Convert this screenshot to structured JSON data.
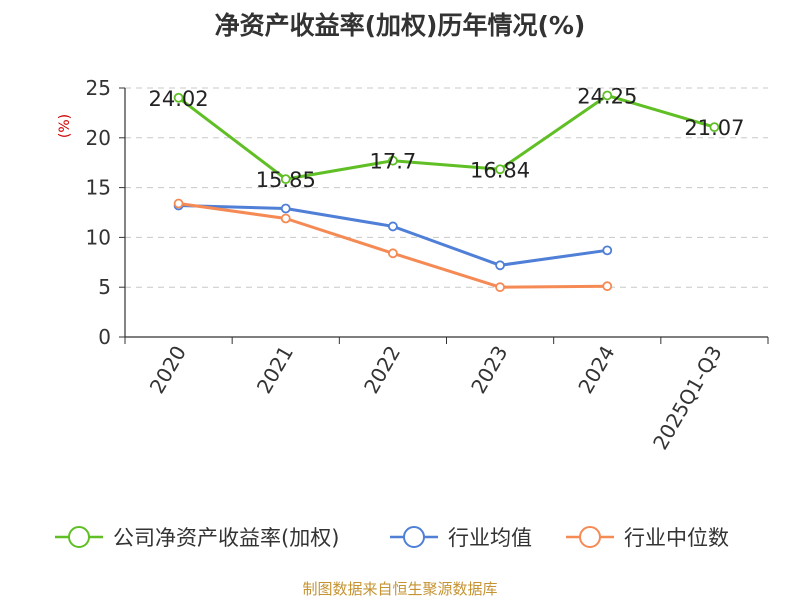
{
  "chart_data": {
    "type": "line",
    "title": "净资产收益率(加权)历年情况(%)",
    "ylabel": "(%)",
    "xlabel": "",
    "categories": [
      "2020",
      "2021",
      "2022",
      "2023",
      "2024",
      "2025Q1-Q3"
    ],
    "ylim": [
      0,
      25
    ],
    "yticks": [
      0,
      5,
      10,
      15,
      20,
      25
    ],
    "grid": "horizontal-dashed",
    "legend_position": "bottom",
    "series": [
      {
        "name": "公司净资产收益率(加权)",
        "color": "#5fbf24",
        "values": [
          24.02,
          15.85,
          17.7,
          16.84,
          24.25,
          21.07
        ],
        "labels": [
          "24.02",
          "15.85",
          "17.7",
          "16.84",
          "24.25",
          "21.07"
        ]
      },
      {
        "name": "行业均值",
        "color": "#4f7fd6",
        "values": [
          13.2,
          12.9,
          11.1,
          7.2,
          8.7,
          null
        ]
      },
      {
        "name": "行业中位数",
        "color": "#f58a55",
        "values": [
          13.4,
          11.9,
          8.4,
          5.0,
          5.1,
          null
        ]
      }
    ]
  },
  "source": "制图数据来自恒生聚源数据库"
}
